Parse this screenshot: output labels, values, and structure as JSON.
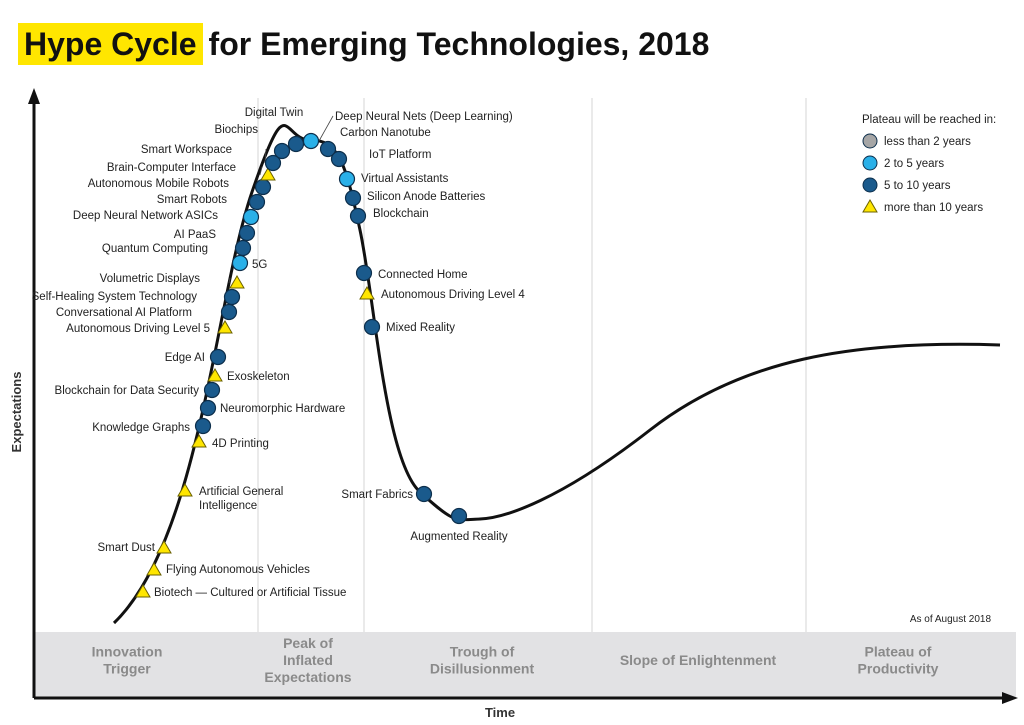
{
  "title": {
    "highlight": "Hype Cycle",
    "rest": "for Emerging Technologies, 2018"
  },
  "axes": {
    "y_label": "Expectations",
    "x_label": "Time"
  },
  "as_of": "As of August 2018",
  "phases": [
    {
      "lines": [
        "Innovation",
        "Trigger"
      ]
    },
    {
      "lines": [
        "Peak of",
        "Inflated",
        "Expectations"
      ]
    },
    {
      "lines": [
        "Trough of",
        "Disillusionment"
      ]
    },
    {
      "lines": [
        "Slope of Enlightenment"
      ]
    },
    {
      "lines": [
        "Plateau of",
        "Productivity"
      ]
    }
  ],
  "legend": {
    "title": "Plateau will be reached in:",
    "items": [
      {
        "key": "lt2",
        "label": "less than 2 years",
        "marker": "circle",
        "color": "#a6a6a6"
      },
      {
        "key": "2to5",
        "label": "2 to 5 years",
        "marker": "circle",
        "color": "#2ab0e8"
      },
      {
        "key": "5to10",
        "label": "5 to 10 years",
        "marker": "circle",
        "color": "#1a5a8c"
      },
      {
        "key": "gt10",
        "label": "more than 10 years",
        "marker": "triangle",
        "color": "#ffe600"
      }
    ]
  },
  "technologies": [
    {
      "name": "Biotech — Cultured or Artificial Tissue",
      "plateau": "gt10"
    },
    {
      "name": "Flying Autonomous Vehicles",
      "plateau": "gt10"
    },
    {
      "name": "Smart Dust",
      "plateau": "gt10"
    },
    {
      "name": "Artificial General Intelligence",
      "plateau": "gt10"
    },
    {
      "name": "4D Printing",
      "plateau": "gt10"
    },
    {
      "name": "Knowledge Graphs",
      "plateau": "5to10"
    },
    {
      "name": "Neuromorphic Hardware",
      "plateau": "5to10"
    },
    {
      "name": "Blockchain for Data Security",
      "plateau": "5to10"
    },
    {
      "name": "Exoskeleton",
      "plateau": "gt10"
    },
    {
      "name": "Edge AI",
      "plateau": "5to10"
    },
    {
      "name": "Autonomous Driving Level 5",
      "plateau": "gt10"
    },
    {
      "name": "Conversational AI Platform",
      "plateau": "5to10"
    },
    {
      "name": "Self-Healing System Technology",
      "plateau": "5to10"
    },
    {
      "name": "Volumetric Displays",
      "plateau": "gt10"
    },
    {
      "name": "5G",
      "plateau": "2to5"
    },
    {
      "name": "Quantum Computing",
      "plateau": "5to10"
    },
    {
      "name": "AI PaaS",
      "plateau": "5to10"
    },
    {
      "name": "Deep Neural Network ASICs",
      "plateau": "2to5"
    },
    {
      "name": "Smart Robots",
      "plateau": "5to10"
    },
    {
      "name": "Autonomous Mobile Robots",
      "plateau": "5to10"
    },
    {
      "name": "Brain-Computer Interface",
      "plateau": "gt10"
    },
    {
      "name": "Smart Workspace",
      "plateau": "5to10"
    },
    {
      "name": "Biochips",
      "plateau": "5to10"
    },
    {
      "name": "Digital Twin",
      "plateau": "5to10"
    },
    {
      "name": "Deep Neural Nets (Deep Learning)",
      "plateau": "2to5"
    },
    {
      "name": "Carbon Nanotube",
      "plateau": "5to10"
    },
    {
      "name": "IoT Platform",
      "plateau": "5to10"
    },
    {
      "name": "Virtual Assistants",
      "plateau": "2to5"
    },
    {
      "name": "Silicon Anode Batteries",
      "plateau": "5to10"
    },
    {
      "name": "Blockchain",
      "plateau": "5to10"
    },
    {
      "name": "Connected Home",
      "plateau": "5to10"
    },
    {
      "name": "Autonomous Driving Level 4",
      "plateau": "gt10"
    },
    {
      "name": "Mixed Reality",
      "plateau": "5to10"
    },
    {
      "name": "Smart Fabrics",
      "plateau": "5to10"
    },
    {
      "name": "Augmented Reality",
      "plateau": "5to10"
    }
  ]
}
